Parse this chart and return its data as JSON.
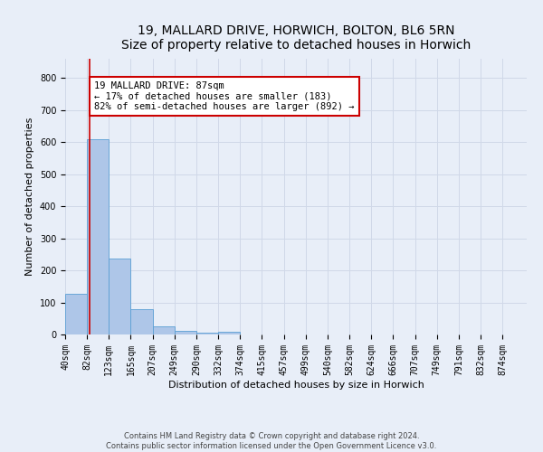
{
  "title_line1": "19, MALLARD DRIVE, HORWICH, BOLTON, BL6 5RN",
  "title_line2": "Size of property relative to detached houses in Horwich",
  "xlabel": "Distribution of detached houses by size in Horwich",
  "ylabel": "Number of detached properties",
  "footer_line1": "Contains HM Land Registry data © Crown copyright and database right 2024.",
  "footer_line2": "Contains public sector information licensed under the Open Government Licence v3.0.",
  "bin_labels": [
    "40sqm",
    "82sqm",
    "123sqm",
    "165sqm",
    "207sqm",
    "249sqm",
    "290sqm",
    "332sqm",
    "374sqm",
    "415sqm",
    "457sqm",
    "499sqm",
    "540sqm",
    "582sqm",
    "624sqm",
    "666sqm",
    "707sqm",
    "749sqm",
    "791sqm",
    "832sqm",
    "874sqm"
  ],
  "bar_heights": [
    128,
    610,
    238,
    78,
    25,
    12,
    5,
    8,
    0,
    0,
    0,
    0,
    0,
    0,
    0,
    0,
    0,
    0,
    0,
    0,
    0
  ],
  "bar_color": "#aec6e8",
  "bar_edge_color": "#5a9fd4",
  "property_line_x": 87,
  "property_line_label": "19 MALLARD DRIVE: 87sqm",
  "annotation_line2": "← 17% of detached houses are smaller (183)",
  "annotation_line3": "82% of semi-detached houses are larger (892) →",
  "annotation_box_color": "#ffffff",
  "annotation_box_edge_color": "#cc0000",
  "vline_color": "#cc0000",
  "ylim": [
    0,
    860
  ],
  "xlim_min": 40,
  "xlim_max": 916,
  "bin_width": 41.5,
  "grid_color": "#d0d8e8",
  "background_color": "#e8eef8",
  "title_fontsize": 10,
  "axis_label_fontsize": 8,
  "tick_fontsize": 7,
  "annotation_fontsize": 7.5,
  "footer_fontsize": 6
}
